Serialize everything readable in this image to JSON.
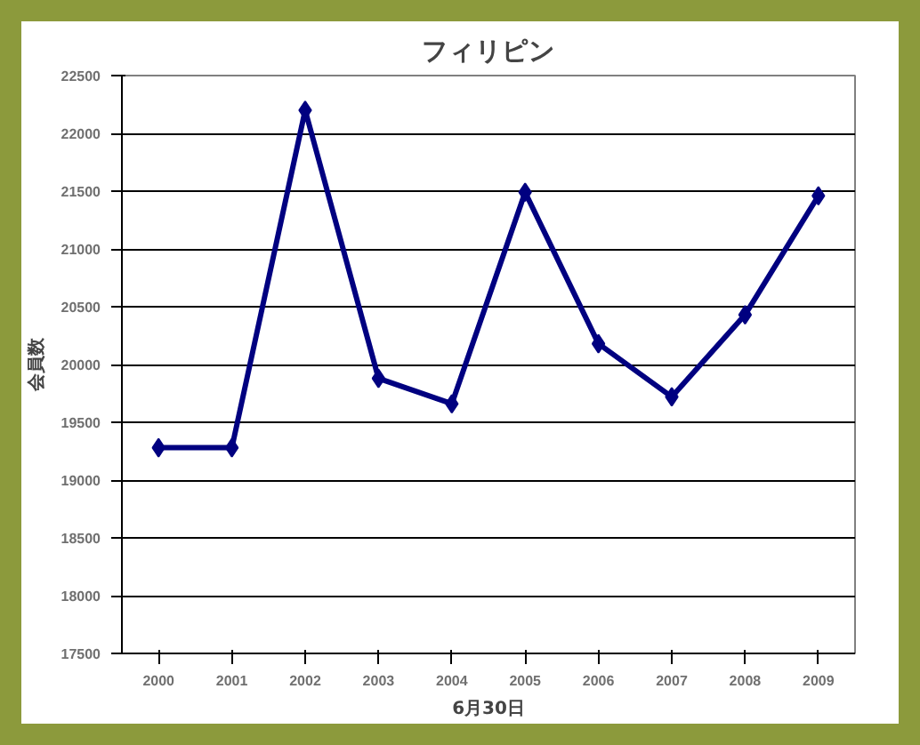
{
  "chart_data": {
    "type": "line",
    "title": "フィリピン",
    "xlabel": "6月30日",
    "ylabel": "会員数",
    "categories": [
      "2000",
      "2001",
      "2002",
      "2003",
      "2004",
      "2005",
      "2006",
      "2007",
      "2008",
      "2009"
    ],
    "series": [
      {
        "color": "#000080",
        "values": [
          19280,
          19280,
          22200,
          19880,
          19660,
          21490,
          20180,
          19720,
          20430,
          21460
        ]
      }
    ],
    "ylim": [
      17500,
      22500
    ],
    "yticks": [
      17500,
      18000,
      18500,
      19000,
      19500,
      20000,
      20500,
      21000,
      21500,
      22000,
      22500
    ],
    "grid": "y",
    "marker": "diamond",
    "line_style": "solid"
  }
}
